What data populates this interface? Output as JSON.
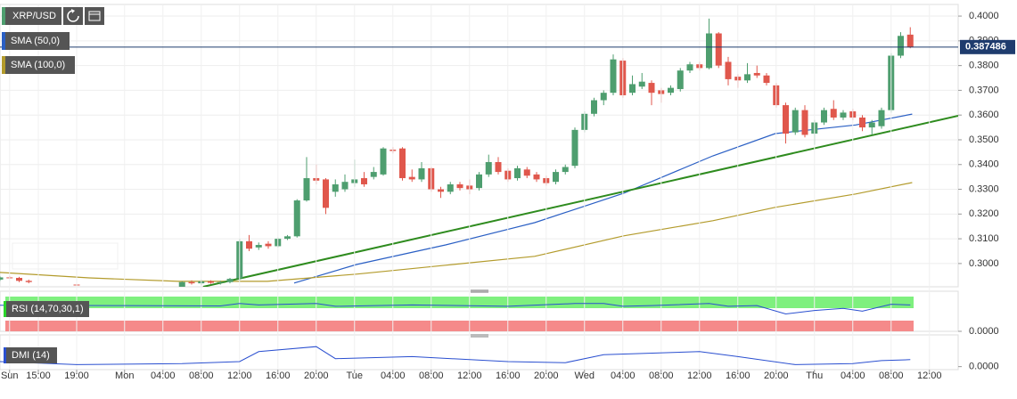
{
  "chart_data": {
    "type": "candlestick",
    "symbol": "XRP/USD",
    "current_price": 0.387486,
    "up_color": "#4e9e6f",
    "down_color": "#e0574c",
    "xlim": [
      -13,
      87
    ],
    "xticks": [
      {
        "value": -12,
        "label": "Sun"
      },
      {
        "value": -9,
        "label": "15:00"
      },
      {
        "value": -5,
        "label": "19:00"
      },
      {
        "value": 0,
        "label": "Mon"
      },
      {
        "value": 4,
        "label": "04:00"
      },
      {
        "value": 8,
        "label": "08:00"
      },
      {
        "value": 12,
        "label": "12:00"
      },
      {
        "value": 16,
        "label": "16:00"
      },
      {
        "value": 20,
        "label": "20:00"
      },
      {
        "value": 24,
        "label": "Tue"
      },
      {
        "value": 28,
        "label": "04:00"
      },
      {
        "value": 32,
        "label": "08:00"
      },
      {
        "value": 36,
        "label": "12:00"
      },
      {
        "value": 40,
        "label": "16:00"
      },
      {
        "value": 44,
        "label": "20:00"
      },
      {
        "value": 48,
        "label": "Wed"
      },
      {
        "value": 52,
        "label": "04:00"
      },
      {
        "value": 56,
        "label": "08:00"
      },
      {
        "value": 60,
        "label": "12:00"
      },
      {
        "value": 64,
        "label": "16:00"
      },
      {
        "value": 68,
        "label": "20:00"
      },
      {
        "value": 72,
        "label": "Thu"
      },
      {
        "value": 76,
        "label": "04:00"
      },
      {
        "value": 80,
        "label": "08:00"
      },
      {
        "value": 84,
        "label": "12:00"
      }
    ],
    "ylim": [
      0.2906,
      0.4047
    ],
    "yticks": [
      {
        "value": 0.3,
        "label": "0.3000"
      },
      {
        "value": 0.31,
        "label": "0.3100"
      },
      {
        "value": 0.32,
        "label": "0.3200"
      },
      {
        "value": 0.33,
        "label": "0.3300"
      },
      {
        "value": 0.34,
        "label": "0.3400"
      },
      {
        "value": 0.35,
        "label": "0.3500"
      },
      {
        "value": 0.36,
        "label": "0.3600"
      },
      {
        "value": 0.37,
        "label": "0.3700"
      },
      {
        "value": 0.38,
        "label": "0.3800"
      },
      {
        "value": 0.39,
        "label": "0.3900"
      },
      {
        "value": 0.4,
        "label": "0.4000"
      }
    ],
    "x": [
      -13,
      -12,
      -11,
      -10,
      -5,
      6,
      7,
      8,
      9,
      10,
      11,
      12,
      13,
      14,
      15,
      16,
      17,
      18,
      19,
      20,
      21,
      22,
      23,
      24,
      25,
      26,
      27,
      28,
      29,
      30,
      31,
      32,
      33,
      34,
      35,
      36,
      37,
      38,
      39,
      40,
      41,
      42,
      43,
      44,
      45,
      46,
      47,
      48,
      49,
      50,
      51,
      52,
      53,
      54,
      55,
      56,
      57,
      58,
      59,
      60,
      61,
      62,
      63,
      64,
      65,
      66,
      67,
      68,
      69,
      70,
      71,
      72,
      73,
      74,
      75,
      76,
      77,
      78,
      79,
      80,
      81,
      82
    ],
    "open": [
      0.2935,
      0.2944,
      0.2942,
      0.293,
      0.2915,
      0.2905,
      0.2925,
      0.292,
      0.2928,
      0.2922,
      0.2925,
      0.294,
      0.309,
      0.3065,
      0.308,
      0.307,
      0.31,
      0.311,
      0.3255,
      0.3345,
      0.334,
      0.329,
      0.33,
      0.3325,
      0.3345,
      0.335,
      0.336,
      0.346,
      0.3465,
      0.335,
      0.334,
      0.3385,
      0.33,
      0.329,
      0.332,
      0.3315,
      0.3305,
      0.336,
      0.341,
      0.3375,
      0.3345,
      0.338,
      0.336,
      0.3345,
      0.333,
      0.337,
      0.3395,
      0.354,
      0.3605,
      0.366,
      0.369,
      0.382,
      0.369,
      0.3715,
      0.373,
      0.37,
      0.369,
      0.3705,
      0.378,
      0.3805,
      0.379,
      0.393,
      0.3815,
      0.3755,
      0.374,
      0.377,
      0.376,
      0.372,
      0.364,
      0.353,
      0.362,
      0.3525,
      0.357,
      0.3625,
      0.359,
      0.3615,
      0.359,
      0.355,
      0.3555,
      0.362,
      0.384,
      0.3925
    ],
    "high": [
      0.2948,
      0.295,
      0.2946,
      0.2935,
      0.292,
      0.2928,
      0.2932,
      0.2935,
      0.2932,
      0.293,
      0.2942,
      0.31,
      0.3115,
      0.3085,
      0.309,
      0.3105,
      0.3115,
      0.326,
      0.343,
      0.34,
      0.3345,
      0.334,
      0.336,
      0.342,
      0.337,
      0.339,
      0.347,
      0.347,
      0.347,
      0.338,
      0.341,
      0.339,
      0.331,
      0.333,
      0.333,
      0.334,
      0.337,
      0.344,
      0.343,
      0.3385,
      0.3395,
      0.339,
      0.337,
      0.3355,
      0.338,
      0.34,
      0.355,
      0.3615,
      0.367,
      0.37,
      0.3845,
      0.383,
      0.376,
      0.377,
      0.374,
      0.371,
      0.372,
      0.379,
      0.3815,
      0.3815,
      0.399,
      0.3935,
      0.3835,
      0.3765,
      0.381,
      0.38,
      0.377,
      0.373,
      0.365,
      0.363,
      0.364,
      0.358,
      0.363,
      0.366,
      0.362,
      0.3625,
      0.36,
      0.358,
      0.363,
      0.385,
      0.3935,
      0.3955
    ],
    "low": [
      0.293,
      0.2938,
      0.2925,
      0.292,
      0.2908,
      0.29,
      0.2915,
      0.2912,
      0.2918,
      0.2915,
      0.292,
      0.293,
      0.305,
      0.3055,
      0.306,
      0.3065,
      0.3095,
      0.3105,
      0.325,
      0.332,
      0.32,
      0.327,
      0.329,
      0.331,
      0.331,
      0.334,
      0.3355,
      0.3445,
      0.3335,
      0.333,
      0.333,
      0.329,
      0.3265,
      0.328,
      0.3295,
      0.328,
      0.3295,
      0.335,
      0.336,
      0.333,
      0.3335,
      0.3345,
      0.333,
      0.3315,
      0.332,
      0.336,
      0.3385,
      0.353,
      0.3595,
      0.364,
      0.368,
      0.367,
      0.368,
      0.3705,
      0.364,
      0.365,
      0.368,
      0.3695,
      0.377,
      0.378,
      0.3785,
      0.379,
      0.372,
      0.371,
      0.373,
      0.375,
      0.372,
      0.363,
      0.3485,
      0.352,
      0.351,
      0.348,
      0.356,
      0.358,
      0.358,
      0.358,
      0.3535,
      0.352,
      0.3545,
      0.361,
      0.383,
      0.387
    ],
    "close": [
      0.2944,
      0.2942,
      0.293,
      0.2925,
      0.2912,
      0.2925,
      0.292,
      0.2928,
      0.2922,
      0.2925,
      0.2938,
      0.309,
      0.306,
      0.3075,
      0.307,
      0.31,
      0.311,
      0.3255,
      0.3345,
      0.3335,
      0.3225,
      0.332,
      0.333,
      0.334,
      0.332,
      0.337,
      0.3465,
      0.3455,
      0.3345,
      0.334,
      0.3385,
      0.33,
      0.329,
      0.332,
      0.3305,
      0.33,
      0.336,
      0.341,
      0.337,
      0.334,
      0.3385,
      0.3355,
      0.334,
      0.3325,
      0.337,
      0.339,
      0.354,
      0.3605,
      0.366,
      0.369,
      0.3825,
      0.368,
      0.3725,
      0.3735,
      0.369,
      0.3685,
      0.371,
      0.378,
      0.3805,
      0.379,
      0.393,
      0.38,
      0.3745,
      0.374,
      0.3765,
      0.376,
      0.373,
      0.364,
      0.3525,
      0.362,
      0.352,
      0.357,
      0.362,
      0.359,
      0.361,
      0.359,
      0.355,
      0.357,
      0.362,
      0.384,
      0.392,
      0.3875
    ],
    "overlays": [
      {
        "name": "SMA (50,0)",
        "color": "#2a5fc4",
        "x": [
          17.7,
          24.2,
          33.5,
          42.8,
          52.1,
          61.4,
          67.9,
          76.3,
          82.2
        ],
        "values": [
          0.2921,
          0.2996,
          0.3075,
          0.3165,
          0.3284,
          0.3435,
          0.3525,
          0.356,
          0.3604
        ]
      },
      {
        "name": "SMA (100,0)",
        "color": "#b39b2c",
        "x": [
          -13,
          -3.7,
          5.6,
          14.9,
          24.2,
          33.5,
          42.8,
          52.1,
          61.4,
          67.9,
          76.3,
          82.2
        ],
        "values": [
          0.2964,
          0.2942,
          0.2928,
          0.2928,
          0.2957,
          0.2993,
          0.3029,
          0.3112,
          0.3173,
          0.3227,
          0.3281,
          0.3327
        ]
      }
    ],
    "trendline": {
      "color": "#2e8b1e",
      "x": [
        8.2,
        87
      ],
      "values": [
        0.2906,
        0.3597
      ]
    },
    "indicators": [
      {
        "name": "RSI (14,70,30,1)",
        "color": "#2a4fd0",
        "ylim": [
          0,
          100
        ],
        "yticks": [
          {
            "value": 0,
            "label": "0.0000"
          }
        ],
        "x": [
          -13,
          0,
          10,
          12,
          14,
          20,
          22,
          30,
          40,
          47,
          50,
          52,
          55,
          61,
          63,
          66,
          69,
          72,
          75,
          77,
          80,
          82
        ],
        "values": [
          75,
          74,
          73,
          80,
          76,
          80,
          72,
          76,
          72,
          80,
          80,
          72,
          74,
          80,
          72,
          74,
          50,
          60,
          66,
          58,
          78,
          76
        ]
      },
      {
        "name": "DMI (14)",
        "color": "#2a4fd0",
        "ylim": [
          -3,
          30
        ],
        "yticks": [
          {
            "value": 0,
            "label": "0.0000"
          }
        ],
        "x": [
          -13,
          -5,
          6,
          12,
          14,
          20,
          22,
          30,
          40,
          46,
          50,
          60,
          64,
          70,
          76,
          79,
          82
        ],
        "values": [
          5,
          2,
          3,
          5,
          15,
          20,
          8,
          10,
          5,
          4,
          12,
          15,
          10,
          2,
          3,
          6,
          7
        ]
      }
    ]
  }
}
